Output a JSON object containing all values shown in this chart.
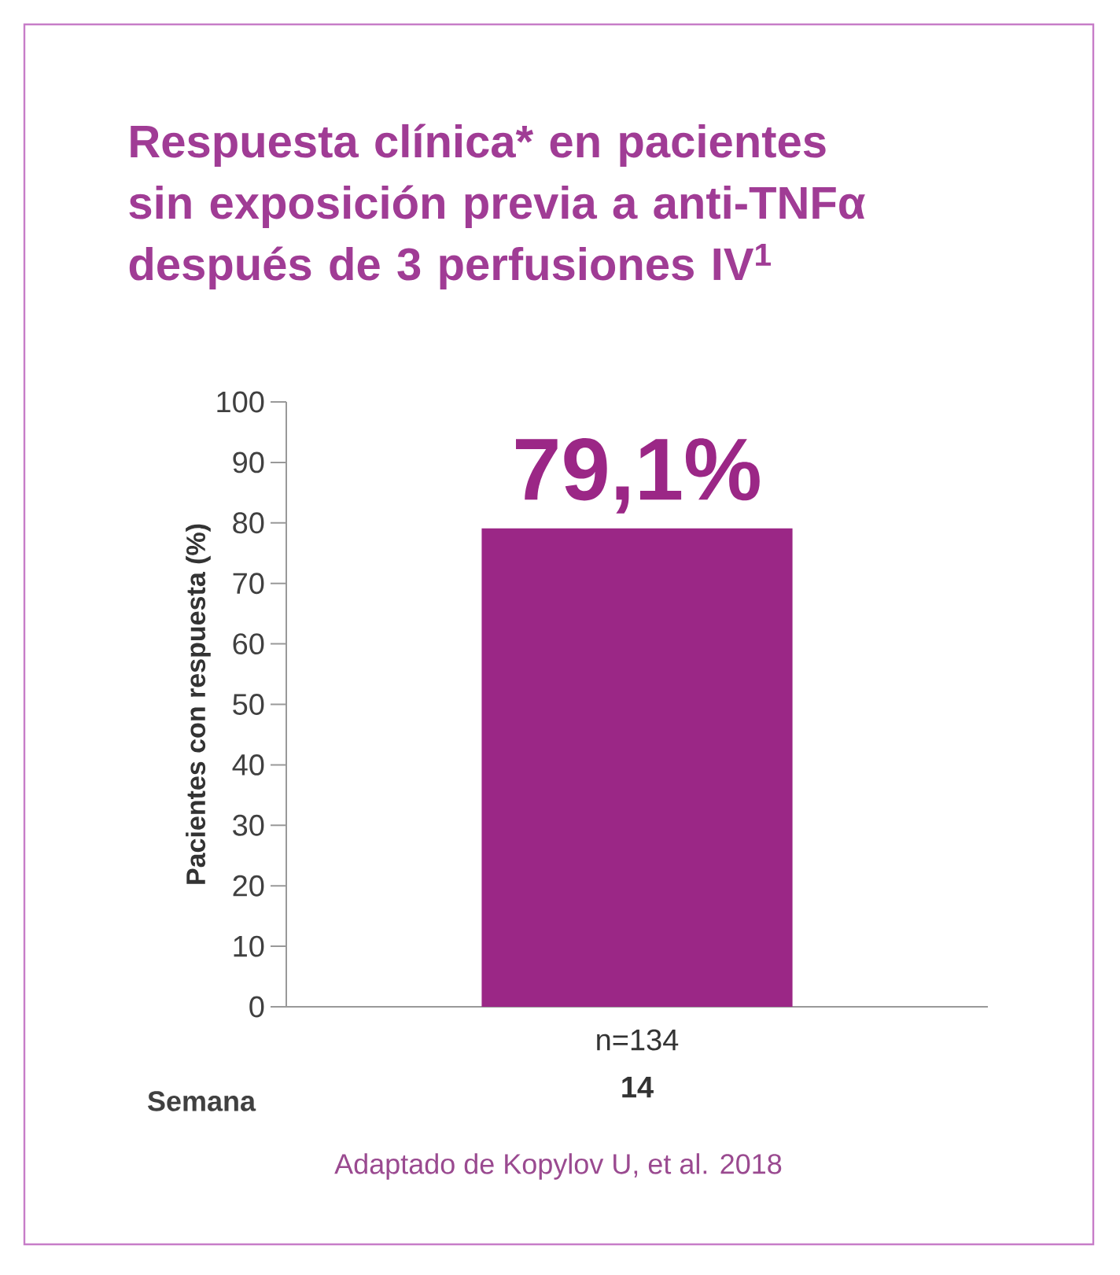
{
  "chart_data": {
    "type": "bar",
    "title": "Respuesta clínica* en pacientes sin exposición previa a anti-TNFα después de 3 perfusiones IV$^{1}$",
    "ylabel": "Pacientes con respuesta (%)",
    "xlabel": "Semana",
    "categories": [
      "14"
    ],
    "values": [
      79.1
    ],
    "color": "#9b2786",
    "value_labels": [
      "79,1%"
    ],
    "ylim": [
      0,
      100
    ],
    "yticks": [
      0,
      10,
      20,
      30,
      40,
      50,
      60,
      70,
      80,
      90,
      100
    ],
    "annotations": [
      "n=134",
      "Adaptado de Kopylov U, et al. 2018"
    ]
  }
}
